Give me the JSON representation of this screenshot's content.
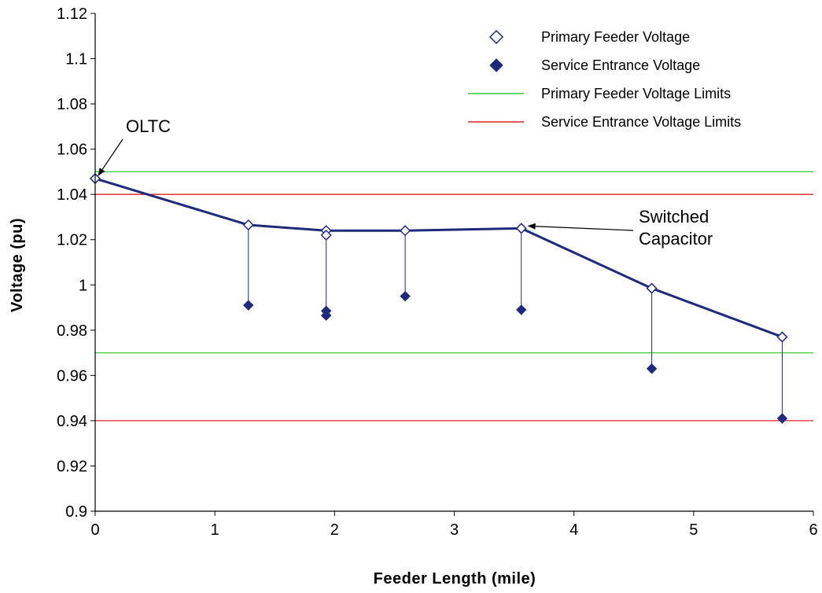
{
  "chart_data": {
    "type": "scatter",
    "xlabel": "Feeder Length (mile)",
    "ylabel": "Voltage (pu)",
    "xlim": [
      0,
      6
    ],
    "ylim": [
      0.9,
      1.12
    ],
    "x_ticks": [
      "0",
      "1",
      "2",
      "3",
      "4",
      "5",
      "6"
    ],
    "y_ticks": [
      "0.9",
      "0.92",
      "0.94",
      "0.96",
      "0.98",
      "1",
      "1.02",
      "1.04",
      "1.06",
      "1.08",
      "1.1",
      "1.12"
    ],
    "grid": false,
    "legend_position": "top-right",
    "series": [
      {
        "name": "Primary Feeder Voltage",
        "marker": "open-diamond",
        "color": "#1f2a7a",
        "connected": true,
        "x": [
          0,
          1.28,
          1.93,
          2.59,
          3.56,
          4.65,
          5.74
        ],
        "y": [
          1.047,
          1.0265,
          1.024,
          1.024,
          1.025,
          0.9985,
          0.977
        ]
      },
      {
        "name": "Service Entrance Voltage",
        "marker": "filled-diamond",
        "color": "#1f2a7a",
        "connected": false,
        "x": [
          1.28,
          1.93,
          1.93,
          2.59,
          3.56,
          4.65,
          5.74
        ],
        "y": [
          0.991,
          0.9885,
          0.9865,
          0.995,
          0.989,
          0.963,
          0.941
        ]
      }
    ],
    "extra_points": [
      {
        "x": 1.93,
        "y": 1.022
      }
    ],
    "drop_lines": [
      {
        "x": 1.28,
        "y_top": 1.0265,
        "y_bottom": 0.991
      },
      {
        "x": 1.93,
        "y_top": 1.024,
        "y_bottom": 0.9865
      },
      {
        "x": 2.59,
        "y_top": 1.024,
        "y_bottom": 0.995
      },
      {
        "x": 3.56,
        "y_top": 1.025,
        "y_bottom": 0.989
      },
      {
        "x": 4.65,
        "y_top": 0.9985,
        "y_bottom": 0.963
      },
      {
        "x": 5.74,
        "y_top": 0.977,
        "y_bottom": 0.941
      }
    ],
    "limits": [
      {
        "name": "Primary Feeder Voltage Limits",
        "color": "#33cc33",
        "values": [
          1.05,
          0.97
        ]
      },
      {
        "name": "Service Entrance Voltage Limits",
        "color": "#e02020",
        "values": [
          1.04,
          0.94
        ]
      }
    ],
    "annotations": [
      {
        "text": [
          "OLTC"
        ],
        "point_x": 0,
        "point_y": 1.047
      },
      {
        "text": [
          "Switched",
          "Capacitor"
        ],
        "point_x": 3.56,
        "point_y": 1.025
      }
    ]
  }
}
